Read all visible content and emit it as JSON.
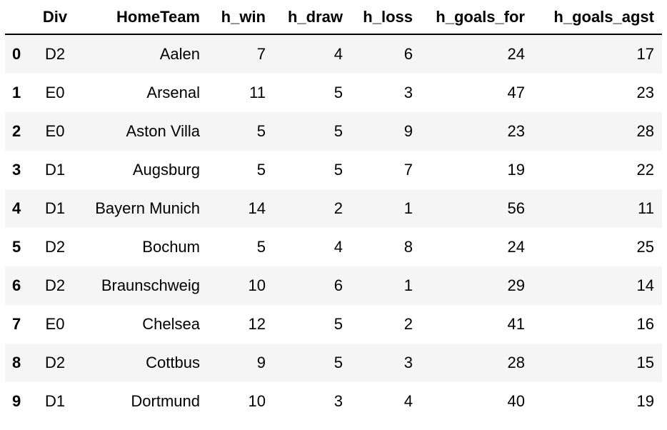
{
  "table": {
    "columns": [
      "",
      "Div",
      "HomeTeam",
      "h_win",
      "h_draw",
      "h_loss",
      "h_goals_for",
      "h_goals_agst"
    ],
    "rows": [
      {
        "index": "0",
        "Div": "D2",
        "HomeTeam": "Aalen",
        "h_win": "7",
        "h_draw": "4",
        "h_loss": "6",
        "h_goals_for": "24",
        "h_goals_agst": "17"
      },
      {
        "index": "1",
        "Div": "E0",
        "HomeTeam": "Arsenal",
        "h_win": "11",
        "h_draw": "5",
        "h_loss": "3",
        "h_goals_for": "47",
        "h_goals_agst": "23"
      },
      {
        "index": "2",
        "Div": "E0",
        "HomeTeam": "Aston Villa",
        "h_win": "5",
        "h_draw": "5",
        "h_loss": "9",
        "h_goals_for": "23",
        "h_goals_agst": "28"
      },
      {
        "index": "3",
        "Div": "D1",
        "HomeTeam": "Augsburg",
        "h_win": "5",
        "h_draw": "5",
        "h_loss": "7",
        "h_goals_for": "19",
        "h_goals_agst": "22"
      },
      {
        "index": "4",
        "Div": "D1",
        "HomeTeam": "Bayern Munich",
        "h_win": "14",
        "h_draw": "2",
        "h_loss": "1",
        "h_goals_for": "56",
        "h_goals_agst": "11"
      },
      {
        "index": "5",
        "Div": "D2",
        "HomeTeam": "Bochum",
        "h_win": "5",
        "h_draw": "4",
        "h_loss": "8",
        "h_goals_for": "24",
        "h_goals_agst": "25"
      },
      {
        "index": "6",
        "Div": "D2",
        "HomeTeam": "Braunschweig",
        "h_win": "10",
        "h_draw": "6",
        "h_loss": "1",
        "h_goals_for": "29",
        "h_goals_agst": "14"
      },
      {
        "index": "7",
        "Div": "E0",
        "HomeTeam": "Chelsea",
        "h_win": "12",
        "h_draw": "5",
        "h_loss": "2",
        "h_goals_for": "41",
        "h_goals_agst": "16"
      },
      {
        "index": "8",
        "Div": "D2",
        "HomeTeam": "Cottbus",
        "h_win": "9",
        "h_draw": "5",
        "h_loss": "3",
        "h_goals_for": "28",
        "h_goals_agst": "15"
      },
      {
        "index": "9",
        "Div": "D1",
        "HomeTeam": "Dortmund",
        "h_win": "10",
        "h_draw": "3",
        "h_loss": "4",
        "h_goals_for": "40",
        "h_goals_agst": "19"
      }
    ]
  }
}
